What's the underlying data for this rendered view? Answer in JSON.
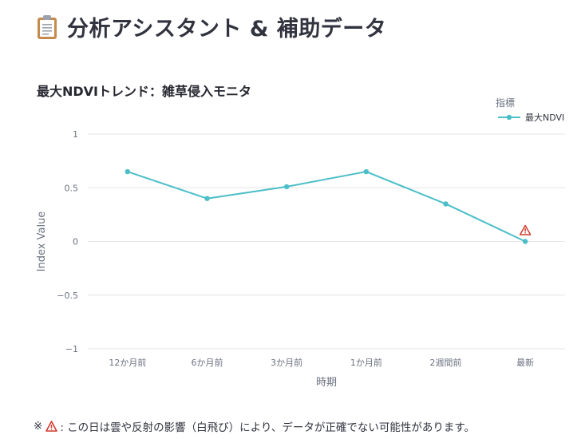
{
  "header": {
    "title": "分析アシスタント & 補助データ",
    "icon": "clipboard-icon"
  },
  "footnote": {
    "prefix": "※",
    "icon": "warning-icon",
    "text": ": この日は雲や反射の影響（白飛び）により、データが正確でない可能性があります。"
  },
  "colors": {
    "series": "#4bbec8",
    "warning": "#d33a2c",
    "grid": "#e6e6e6"
  },
  "chart_data": {
    "type": "line",
    "title": "最大NDVIトレンド：雑草侵入モニタ",
    "xlabel": "時期",
    "ylabel": "Index Value",
    "categories": [
      "12か月前",
      "6か月前",
      "3か月前",
      "1か月前",
      "2週間前",
      "最新"
    ],
    "series": [
      {
        "name": "最大NDVI",
        "values": [
          0.65,
          0.4,
          0.51,
          0.65,
          0.35,
          0.0
        ]
      }
    ],
    "ylim": [
      -1,
      1
    ],
    "yticks": [
      1,
      0.5,
      0,
      -0.5,
      -1
    ],
    "ytick_labels": [
      "1",
      "0.5",
      "0",
      "−0.5",
      "−1"
    ],
    "legend_title": "指標",
    "legend_position": "top-right",
    "annotations": [
      {
        "category": "最新",
        "icon": "warning-icon"
      }
    ],
    "grid": true
  }
}
